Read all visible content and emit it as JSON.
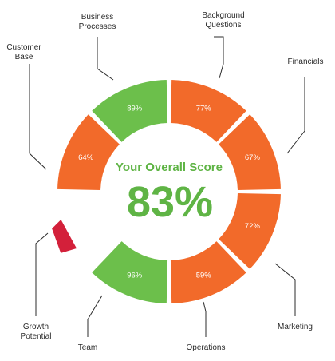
{
  "overall": {
    "title": "Your Overall Score",
    "value": "83%"
  },
  "colors": {
    "green": "#6cbf4b",
    "orange": "#f26a2a",
    "red": "#d3203a",
    "score": "#5fb445"
  },
  "chart_data": {
    "type": "donut",
    "title": "Your Overall Score",
    "center_value": "83%",
    "segments": [
      {
        "name": "Background Questions",
        "name_lines": [
          "Background",
          "Questions"
        ],
        "value": 77,
        "label": "77%",
        "color": "orange"
      },
      {
        "name": "Financials",
        "name_lines": [
          "Financials"
        ],
        "value": 67,
        "label": "67%",
        "color": "orange"
      },
      {
        "name": "Marketing",
        "name_lines": [
          "Marketing"
        ],
        "value": 72,
        "label": "72%",
        "color": "orange"
      },
      {
        "name": "Operations",
        "name_lines": [
          "Operations"
        ],
        "value": 59,
        "label": "59%",
        "color": "orange"
      },
      {
        "name": "Team",
        "name_lines": [
          "Team"
        ],
        "value": 96,
        "label": "96%",
        "color": "green"
      },
      {
        "name": "Growth Potential",
        "name_lines": [
          "Growth",
          "Potential"
        ],
        "value": null,
        "label": "",
        "color": "red"
      },
      {
        "name": "Customer Base",
        "name_lines": [
          "Customer",
          "Base"
        ],
        "value": 64,
        "label": "64%",
        "color": "orange"
      },
      {
        "name": "Business Processes",
        "name_lines": [
          "Business",
          "Processes"
        ],
        "value": 89,
        "label": "89%",
        "color": "green"
      }
    ]
  }
}
